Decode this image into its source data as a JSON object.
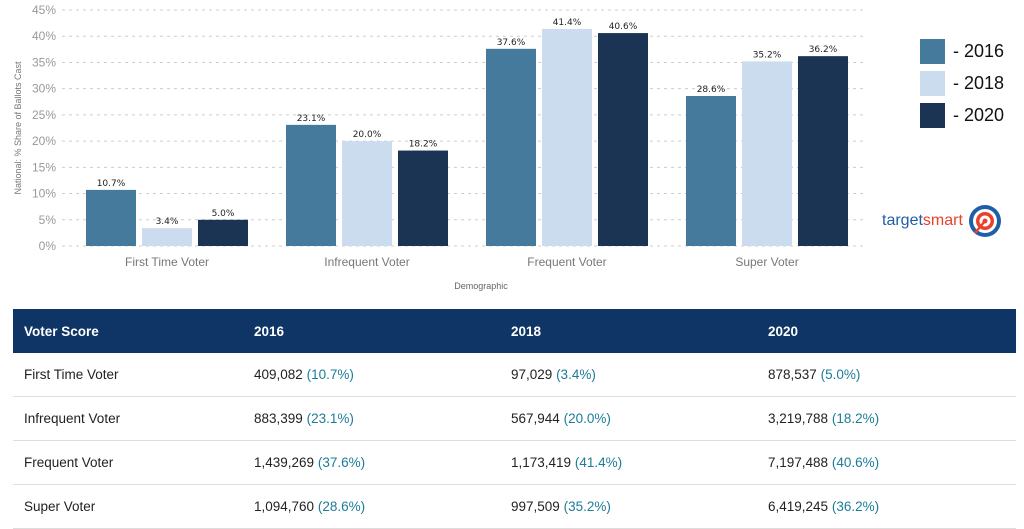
{
  "chart_data": {
    "type": "bar",
    "title": "",
    "xlabel": "Demographic",
    "ylabel": "National: % Share of Ballots Cast",
    "ylim": [
      0,
      45
    ],
    "yticks": [
      "0%",
      "5%",
      "10%",
      "15%",
      "20%",
      "25%",
      "30%",
      "35%",
      "40%",
      "45%"
    ],
    "grid": true,
    "legend_position": "right",
    "categories": [
      "First Time Voter",
      "Infrequent Voter",
      "Frequent Voter",
      "Super Voter"
    ],
    "series": [
      {
        "name": "2016",
        "color": "#467a9c",
        "values": [
          10.7,
          23.1,
          37.6,
          28.6
        ],
        "labels": [
          "10.7%",
          "23.1%",
          "37.6%",
          "28.6%"
        ]
      },
      {
        "name": "2018",
        "color": "#cbdcee",
        "values": [
          3.4,
          20.0,
          41.4,
          35.2
        ],
        "labels": [
          "3.4%",
          "20.0%",
          "41.4%",
          "35.2%"
        ]
      },
      {
        "name": "2020",
        "color": "#1c3454",
        "values": [
          5.0,
          18.2,
          40.6,
          36.2
        ],
        "labels": [
          "5.0%",
          "18.2%",
          "40.6%",
          "36.2%"
        ]
      }
    ]
  },
  "legend": [
    "- 2016",
    "- 2018",
    "- 2020"
  ],
  "logo": {
    "part1": "target",
    "part2": "smart",
    "accent": "#e8412c",
    "brand": "#1f5fa8"
  },
  "table": {
    "headers": [
      "Voter Score",
      "2016",
      "2018",
      "2020"
    ],
    "rows": [
      {
        "label": "First Time Voter",
        "cells": [
          {
            "n": "409,082",
            "p": "(10.7%)"
          },
          {
            "n": "97,029",
            "p": "(3.4%)"
          },
          {
            "n": "878,537",
            "p": "(5.0%)"
          }
        ]
      },
      {
        "label": "Infrequent Voter",
        "cells": [
          {
            "n": "883,399",
            "p": "(23.1%)"
          },
          {
            "n": "567,944",
            "p": "(20.0%)"
          },
          {
            "n": "3,219,788",
            "p": "(18.2%)"
          }
        ]
      },
      {
        "label": "Frequent Voter",
        "cells": [
          {
            "n": "1,439,269",
            "p": "(37.6%)"
          },
          {
            "n": "1,173,419",
            "p": "(41.4%)"
          },
          {
            "n": "7,197,488",
            "p": "(40.6%)"
          }
        ]
      },
      {
        "label": "Super Voter",
        "cells": [
          {
            "n": "1,094,760",
            "p": "(28.6%)"
          },
          {
            "n": "997,509",
            "p": "(35.2%)"
          },
          {
            "n": "6,419,245",
            "p": "(36.2%)"
          }
        ]
      }
    ]
  }
}
